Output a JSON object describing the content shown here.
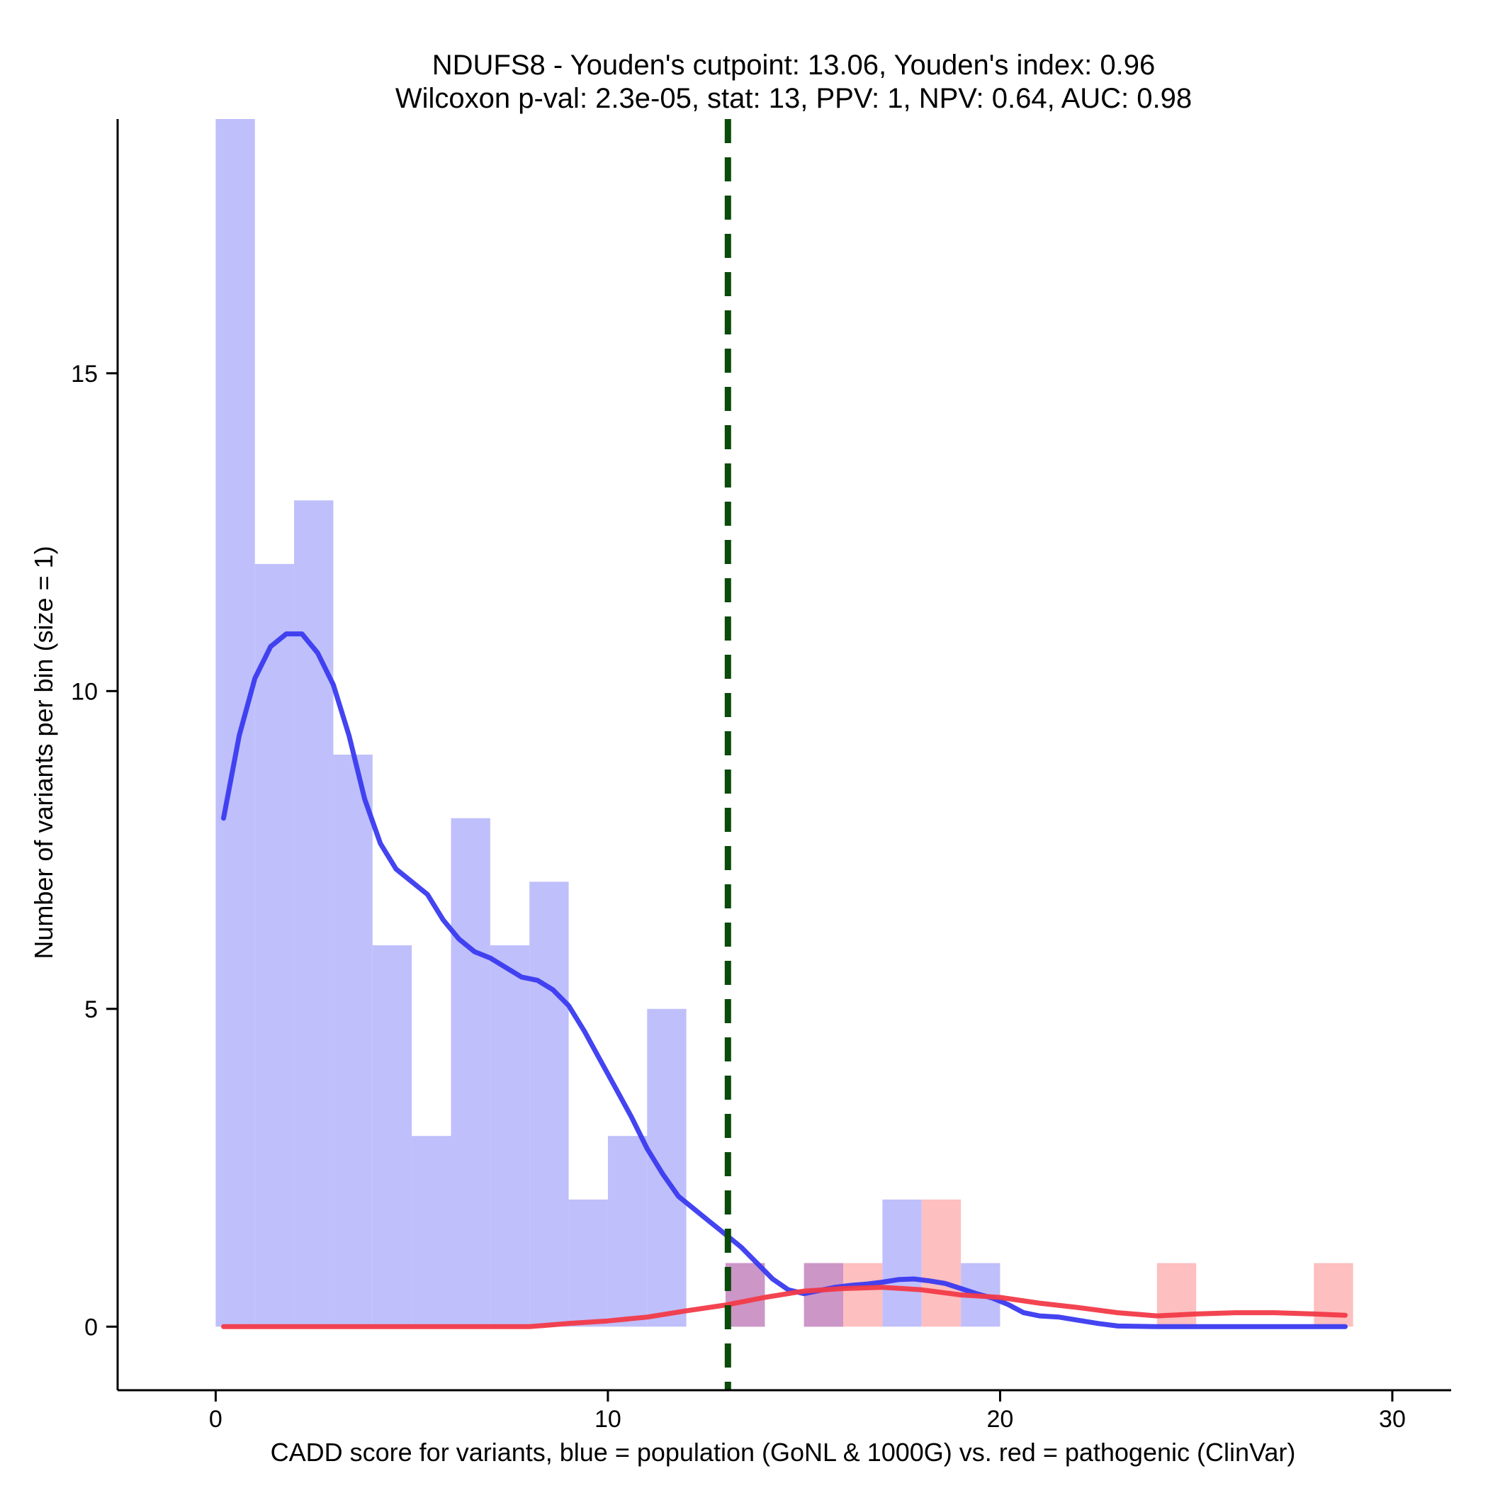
{
  "chart_data": {
    "type": "histogram",
    "title": "NDUFS8 - Youden's cutpoint: 13.06, Youden's index: 0.96",
    "subtitle": "Wilcoxon p-val: 2.3e-05, stat: 13, PPV: 1, NPV: 0.64, AUC: 0.98",
    "xlabel": "CADD score for variants, blue = population (GoNL & 1000G) vs. red = pathogenic (ClinVar)",
    "ylabel": "Number of variants per bin (size = 1)",
    "xlim": [
      -2.5,
      31.5
    ],
    "ylim": [
      -1,
      19
    ],
    "x_ticks": [
      {
        "value": 0,
        "label": "0"
      },
      {
        "value": 10,
        "label": "10"
      },
      {
        "value": 20,
        "label": "20"
      },
      {
        "value": 30,
        "label": "30"
      }
    ],
    "y_ticks": [
      {
        "value": 0,
        "label": "0"
      },
      {
        "value": 5,
        "label": "5"
      },
      {
        "value": 10,
        "label": "10"
      },
      {
        "value": 15,
        "label": "15"
      }
    ],
    "bin_size": 1,
    "cutpoint": 13.06,
    "colors": {
      "population_bar": "#bfbffb",
      "pathogenic_bar": "#fdbfc0",
      "overlap_bar": "#cc96c7",
      "population_line": "#3a3af0",
      "pathogenic_line": "#f23a48",
      "cutpoint_line": "#0a4a0a"
    },
    "series": [
      {
        "name": "population (GoNL & 1000G)",
        "bins": [
          {
            "start": 0,
            "count": 19
          },
          {
            "start": 1,
            "count": 12
          },
          {
            "start": 2,
            "count": 13
          },
          {
            "start": 3,
            "count": 9
          },
          {
            "start": 4,
            "count": 6
          },
          {
            "start": 5,
            "count": 3
          },
          {
            "start": 6,
            "count": 8
          },
          {
            "start": 7,
            "count": 6
          },
          {
            "start": 8,
            "count": 7
          },
          {
            "start": 9,
            "count": 2
          },
          {
            "start": 10,
            "count": 3
          },
          {
            "start": 11,
            "count": 5
          },
          {
            "start": 13,
            "count": 1
          },
          {
            "start": 15,
            "count": 1
          },
          {
            "start": 17,
            "count": 2
          },
          {
            "start": 19,
            "count": 1
          }
        ],
        "density_curve": [
          [
            0.2,
            8.0
          ],
          [
            0.6,
            9.3
          ],
          [
            1.0,
            10.2
          ],
          [
            1.4,
            10.7
          ],
          [
            1.8,
            10.9
          ],
          [
            2.2,
            10.9
          ],
          [
            2.6,
            10.6
          ],
          [
            3.0,
            10.1
          ],
          [
            3.4,
            9.3
          ],
          [
            3.8,
            8.3
          ],
          [
            4.2,
            7.6
          ],
          [
            4.6,
            7.2
          ],
          [
            5.0,
            7.0
          ],
          [
            5.4,
            6.8
          ],
          [
            5.8,
            6.4
          ],
          [
            6.2,
            6.1
          ],
          [
            6.6,
            5.9
          ],
          [
            7.0,
            5.8
          ],
          [
            7.4,
            5.65
          ],
          [
            7.8,
            5.5
          ],
          [
            8.2,
            5.45
          ],
          [
            8.6,
            5.3
          ],
          [
            9.0,
            5.05
          ],
          [
            9.4,
            4.65
          ],
          [
            9.8,
            4.2
          ],
          [
            10.2,
            3.75
          ],
          [
            10.6,
            3.3
          ],
          [
            11.0,
            2.8
          ],
          [
            11.4,
            2.4
          ],
          [
            11.8,
            2.05
          ],
          [
            12.2,
            1.85
          ],
          [
            12.6,
            1.65
          ],
          [
            13.0,
            1.45
          ],
          [
            13.4,
            1.25
          ],
          [
            13.8,
            1.0
          ],
          [
            14.2,
            0.75
          ],
          [
            14.6,
            0.58
          ],
          [
            15.0,
            0.52
          ],
          [
            15.4,
            0.57
          ],
          [
            15.8,
            0.62
          ],
          [
            16.2,
            0.65
          ],
          [
            16.6,
            0.67
          ],
          [
            17.0,
            0.7
          ],
          [
            17.4,
            0.74
          ],
          [
            17.8,
            0.75
          ],
          [
            18.2,
            0.72
          ],
          [
            18.6,
            0.68
          ],
          [
            19.0,
            0.6
          ],
          [
            19.4,
            0.52
          ],
          [
            19.8,
            0.45
          ],
          [
            20.2,
            0.35
          ],
          [
            20.6,
            0.22
          ],
          [
            21.0,
            0.17
          ],
          [
            21.5,
            0.15
          ],
          [
            22.0,
            0.1
          ],
          [
            22.5,
            0.05
          ],
          [
            23.0,
            0.01
          ],
          [
            24.0,
            0.0
          ],
          [
            26.0,
            0.0
          ],
          [
            28.0,
            0.0
          ],
          [
            28.8,
            0.0
          ]
        ]
      },
      {
        "name": "pathogenic (ClinVar)",
        "bins": [
          {
            "start": 13,
            "count": 1
          },
          {
            "start": 15,
            "count": 1
          },
          {
            "start": 16,
            "count": 1
          },
          {
            "start": 18,
            "count": 2
          },
          {
            "start": 24,
            "count": 1
          },
          {
            "start": 28,
            "count": 1
          }
        ],
        "density_curve": [
          [
            0.2,
            0.0
          ],
          [
            4.0,
            0.0
          ],
          [
            8.0,
            0.0
          ],
          [
            9.0,
            0.05
          ],
          [
            10.0,
            0.09
          ],
          [
            11.0,
            0.15
          ],
          [
            12.0,
            0.25
          ],
          [
            13.0,
            0.34
          ],
          [
            14.0,
            0.46
          ],
          [
            15.0,
            0.56
          ],
          [
            16.0,
            0.6
          ],
          [
            17.0,
            0.62
          ],
          [
            18.0,
            0.58
          ],
          [
            19.0,
            0.5
          ],
          [
            20.0,
            0.46
          ],
          [
            21.0,
            0.37
          ],
          [
            22.0,
            0.3
          ],
          [
            23.0,
            0.22
          ],
          [
            24.0,
            0.17
          ],
          [
            25.0,
            0.2
          ],
          [
            26.0,
            0.22
          ],
          [
            27.0,
            0.22
          ],
          [
            28.0,
            0.2
          ],
          [
            28.8,
            0.18
          ]
        ]
      }
    ]
  }
}
